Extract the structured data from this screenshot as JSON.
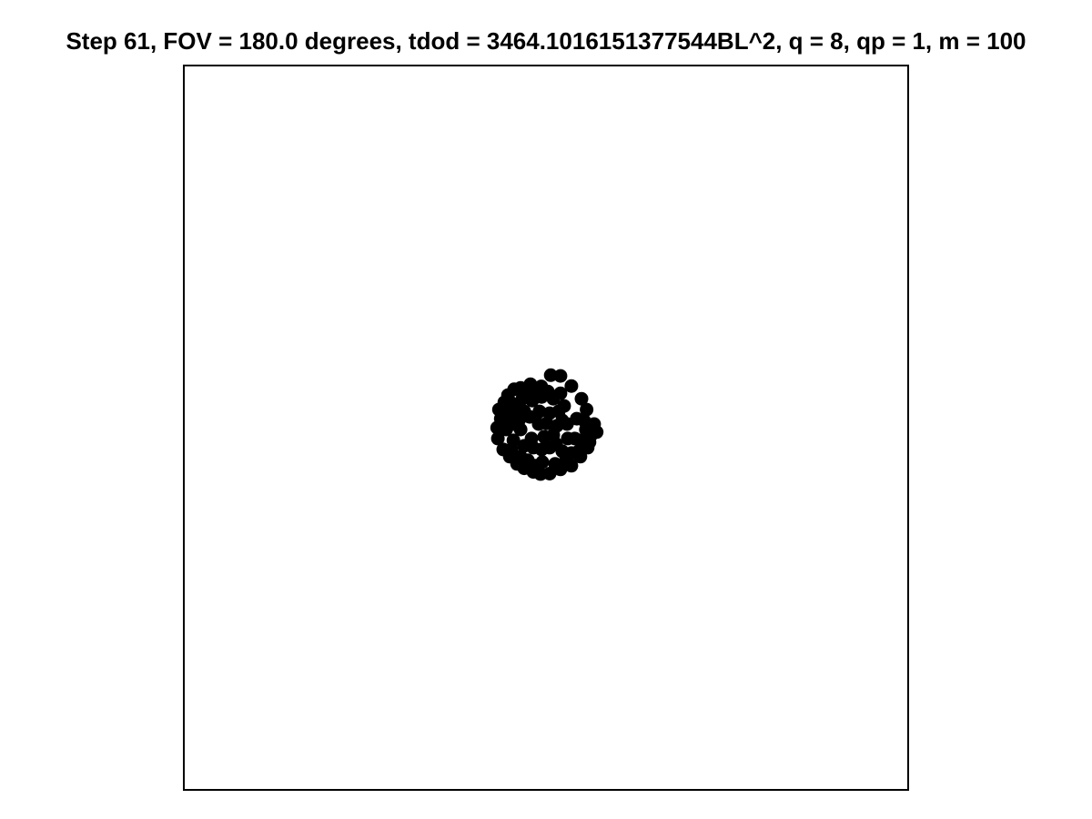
{
  "chart_data": {
    "type": "scatter",
    "title": "Step 61, FOV = 180.0 degrees, tdod = 3464.1016151377544BL^2, q = 8, qp = 1, m = 100",
    "xlabel": "",
    "ylabel": "",
    "xlim": [
      -1,
      1
    ],
    "ylim": [
      -1,
      1
    ],
    "grid": false,
    "axes_ticks": false,
    "marker_color": "#000000",
    "points": [
      [
        0.013,
        0.145
      ],
      [
        0.04,
        0.143
      ],
      [
        -0.043,
        0.12
      ],
      [
        -0.013,
        0.114
      ],
      [
        0.07,
        0.115
      ],
      [
        0.098,
        0.08
      ],
      [
        0.112,
        0.05
      ],
      [
        -0.088,
        0.106
      ],
      [
        -0.07,
        0.11
      ],
      [
        -0.105,
        0.09
      ],
      [
        -0.115,
        0.07
      ],
      [
        -0.13,
        0.05
      ],
      [
        -0.125,
        0.025
      ],
      [
        -0.135,
        0.0
      ],
      [
        -0.133,
        -0.03
      ],
      [
        -0.118,
        -0.06
      ],
      [
        -0.1,
        -0.08
      ],
      [
        -0.08,
        -0.1
      ],
      [
        -0.06,
        -0.112
      ],
      [
        -0.035,
        -0.122
      ],
      [
        -0.015,
        -0.128
      ],
      [
        0.01,
        -0.127
      ],
      [
        0.04,
        -0.115
      ],
      [
        0.07,
        -0.105
      ],
      [
        0.095,
        -0.08
      ],
      [
        0.115,
        -0.055
      ],
      [
        0.125,
        -0.02
      ],
      [
        0.133,
        0.01
      ],
      [
        0.14,
        -0.012
      ],
      [
        0.11,
        -0.005
      ],
      [
        0.095,
        -0.035
      ],
      [
        0.08,
        -0.03
      ],
      [
        -0.065,
        0.08
      ],
      [
        -0.038,
        0.075
      ],
      [
        -0.012,
        0.085
      ],
      [
        0.02,
        0.08
      ],
      [
        0.035,
        0.045
      ],
      [
        0.045,
        0.02
      ],
      [
        0.03,
        0.005
      ],
      [
        0.002,
        0.012
      ],
      [
        -0.02,
        0.01
      ],
      [
        -0.045,
        0.03
      ],
      [
        -0.075,
        0.02
      ],
      [
        -0.095,
        0.045
      ],
      [
        -0.09,
        0.01
      ],
      [
        -0.09,
        -0.035
      ],
      [
        -0.06,
        -0.05
      ],
      [
        -0.035,
        -0.055
      ],
      [
        -0.012,
        -0.06
      ],
      [
        0.01,
        -0.055
      ],
      [
        0.028,
        -0.045
      ],
      [
        -0.018,
        0.045
      ],
      [
        0.06,
        -0.03
      ],
      [
        0.058,
        0.01
      ],
      [
        0.05,
        0.06
      ],
      [
        -0.07,
        -0.005
      ],
      [
        -0.098,
        0.07
      ],
      [
        -0.115,
        0.03
      ],
      [
        -0.095,
        -0.06
      ],
      [
        -0.05,
        -0.09
      ],
      [
        -0.01,
        -0.095
      ],
      [
        0.025,
        -0.1
      ],
      [
        0.055,
        -0.09
      ],
      [
        0.01,
        0.04
      ],
      [
        0.02,
        -0.02
      ],
      [
        0.12,
        -0.04
      ],
      [
        0.09,
        -0.065
      ],
      [
        -0.05,
        0.1
      ],
      [
        -0.025,
        0.095
      ],
      [
        0.005,
        0.1
      ],
      [
        0.04,
        0.095
      ],
      [
        -0.075,
        0.06
      ],
      [
        0.085,
        0.025
      ],
      [
        -0.11,
        -0.005
      ],
      [
        -0.07,
        -0.08
      ],
      [
        -0.03,
        -0.105
      ],
      [
        0.07,
        -0.07
      ],
      [
        0.105,
        0.02
      ],
      [
        -0.005,
        -0.025
      ],
      [
        -0.04,
        -0.03
      ],
      [
        0.045,
        -0.065
      ],
      [
        -0.06,
        0.045
      ]
    ]
  }
}
